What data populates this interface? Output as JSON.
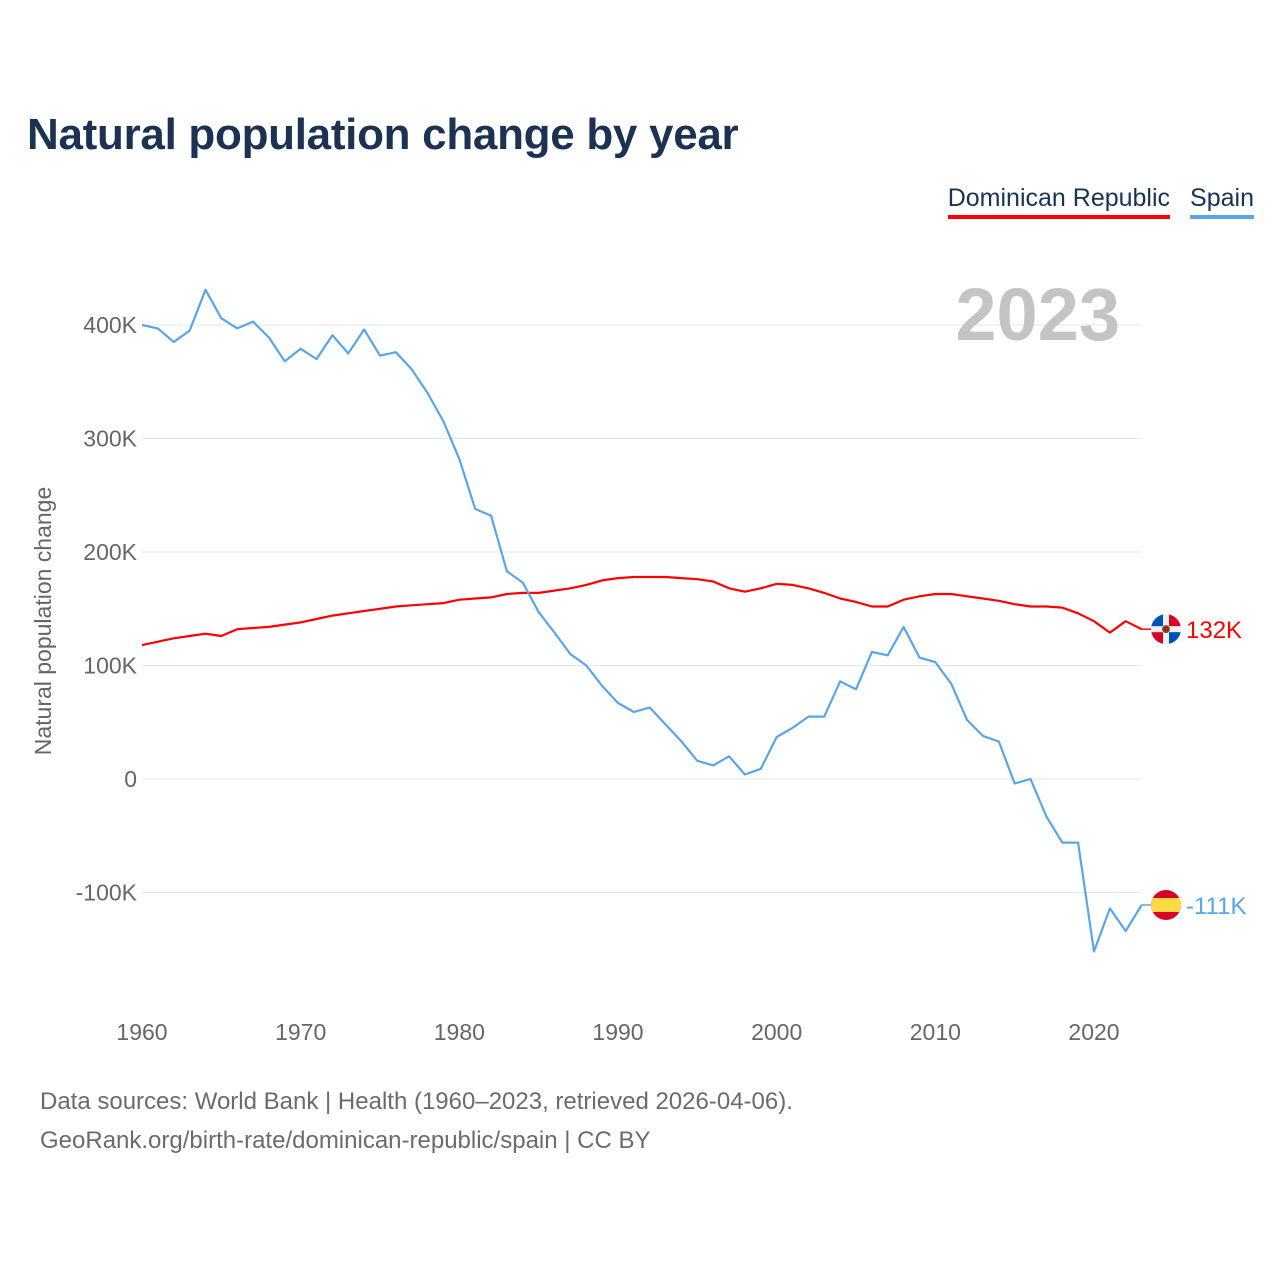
{
  "title": "Natural population change by year",
  "footer": {
    "line1": "Data sources: World Bank | Health (1960–2023, retrieved 2026-04-06).",
    "line2": "GeoRank.org/birth-rate/dominican-republic/spain | CC BY"
  },
  "chart_data": {
    "type": "line",
    "title": "Natural population change by year",
    "ylabel": "Natural population change",
    "xlabel": "",
    "year_watermark": "2023",
    "xlim": [
      1960,
      2023
    ],
    "ylim": [
      -200000,
      450000
    ],
    "x_ticks": [
      1960,
      1970,
      1980,
      1990,
      2000,
      2010,
      2020
    ],
    "y_ticks": [
      {
        "v": -100000,
        "label": "-100K"
      },
      {
        "v": 0,
        "label": "0"
      },
      {
        "v": 100000,
        "label": "100K"
      },
      {
        "v": 200000,
        "label": "200K"
      },
      {
        "v": 300000,
        "label": "300K"
      },
      {
        "v": 400000,
        "label": "400K"
      }
    ],
    "grid": true,
    "legend_position": "top-right",
    "x": [
      1960,
      1961,
      1962,
      1963,
      1964,
      1965,
      1966,
      1967,
      1968,
      1969,
      1970,
      1971,
      1972,
      1973,
      1974,
      1975,
      1976,
      1977,
      1978,
      1979,
      1980,
      1981,
      1982,
      1983,
      1984,
      1985,
      1986,
      1987,
      1988,
      1989,
      1990,
      1991,
      1992,
      1993,
      1994,
      1995,
      1996,
      1997,
      1998,
      1999,
      2000,
      2001,
      2002,
      2003,
      2004,
      2005,
      2006,
      2007,
      2008,
      2009,
      2010,
      2011,
      2012,
      2013,
      2014,
      2015,
      2016,
      2017,
      2018,
      2019,
      2020,
      2021,
      2022,
      2023
    ],
    "series": [
      {
        "name": "Dominican Republic",
        "color": "#ff0000",
        "end_label": "132K",
        "flag": "dominican-republic",
        "values": [
          118000,
          121000,
          124000,
          126000,
          128000,
          126000,
          132000,
          133000,
          134000,
          136000,
          138000,
          141000,
          144000,
          146000,
          148000,
          150000,
          152000,
          153000,
          154000,
          155000,
          158000,
          159000,
          160000,
          163000,
          164000,
          164000,
          166000,
          168000,
          171000,
          175000,
          177000,
          178000,
          178000,
          178000,
          177000,
          176000,
          174000,
          168000,
          165000,
          168000,
          172000,
          171000,
          168000,
          164000,
          159000,
          156000,
          152000,
          152000,
          158000,
          161000,
          163000,
          163000,
          161000,
          159000,
          157000,
          154000,
          152000,
          152000,
          151000,
          146000,
          139000,
          129000,
          139000,
          132000
        ]
      },
      {
        "name": "Spain",
        "color": "#5aa5e8",
        "end_label": "-111K",
        "flag": "spain",
        "values": [
          400000,
          397000,
          385000,
          395000,
          431000,
          406000,
          397000,
          403000,
          389000,
          368000,
          379000,
          370000,
          391000,
          375000,
          396000,
          373000,
          376000,
          361000,
          340000,
          315000,
          282000,
          238000,
          232000,
          183000,
          173000,
          147000,
          129000,
          110000,
          100000,
          82000,
          67000,
          59000,
          63000,
          48000,
          33000,
          16000,
          12000,
          20000,
          4000,
          9000,
          37000,
          45000,
          55000,
          55000,
          86000,
          79000,
          112000,
          109000,
          134000,
          107000,
          103000,
          84000,
          52000,
          38000,
          33000,
          -4000,
          0,
          -33000,
          -56000,
          -56000,
          -152000,
          -114000,
          -134000,
          -111000
        ]
      }
    ]
  }
}
